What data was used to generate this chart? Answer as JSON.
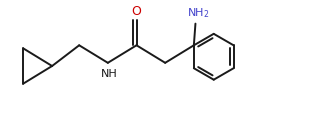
{
  "bg_color": "#ffffff",
  "bond_color": "#1a1a1a",
  "O_color": "#cc0000",
  "NH2_color": "#4444cc",
  "NH_color": "#1a1a1a",
  "font_size_O": 9,
  "font_size_N": 8,
  "font_size_NH2": 8,
  "linewidth": 1.4,
  "figsize": [
    3.24,
    1.32
  ],
  "dpi": 100,
  "xlim": [
    0,
    10
  ],
  "ylim": [
    0,
    4.1
  ]
}
